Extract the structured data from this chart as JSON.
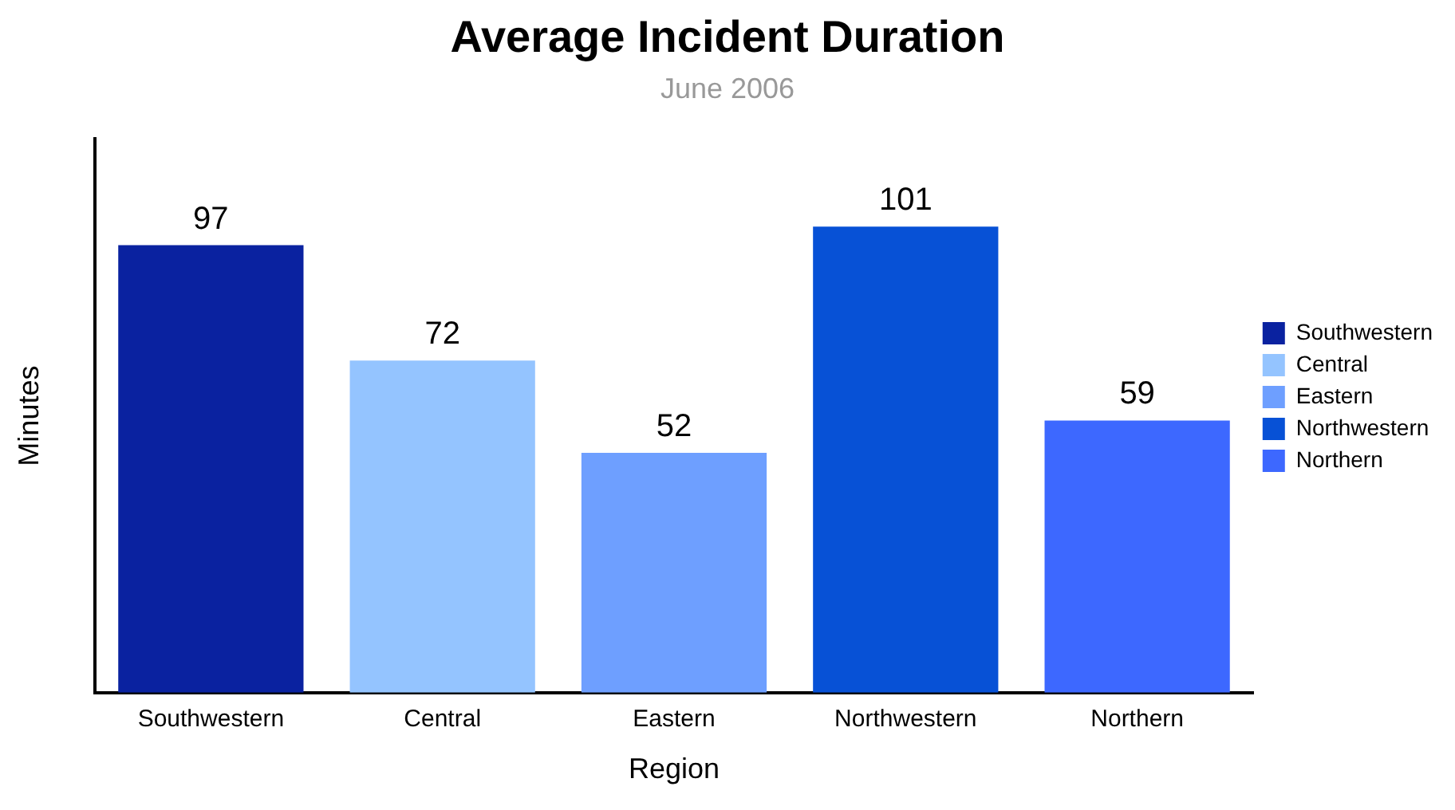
{
  "chart_data": {
    "type": "bar",
    "title": "Average Incident Duration",
    "subtitle": "June 2006",
    "xlabel": "Region",
    "ylabel": "Minutes",
    "categories": [
      "Southwestern",
      "Central",
      "Eastern",
      "Northwestern",
      "Northern"
    ],
    "series": [
      {
        "name": "Southwestern",
        "color": "#0a22a0",
        "values": [
          97,
          null,
          null,
          null,
          null
        ]
      },
      {
        "name": "Central",
        "color": "#94c4ff",
        "values": [
          null,
          72,
          null,
          null,
          null
        ]
      },
      {
        "name": "Eastern",
        "color": "#6e9fff",
        "values": [
          null,
          null,
          52,
          null,
          null
        ]
      },
      {
        "name": "Northwestern",
        "color": "#0751d6",
        "values": [
          null,
          null,
          null,
          101,
          null
        ]
      },
      {
        "name": "Northern",
        "color": "#3d68ff",
        "values": [
          null,
          null,
          null,
          null,
          59
        ]
      }
    ],
    "ylim": [
      0,
      120
    ],
    "tick_labels": "x",
    "grid": false,
    "legend": "right",
    "data_labels": true
  }
}
